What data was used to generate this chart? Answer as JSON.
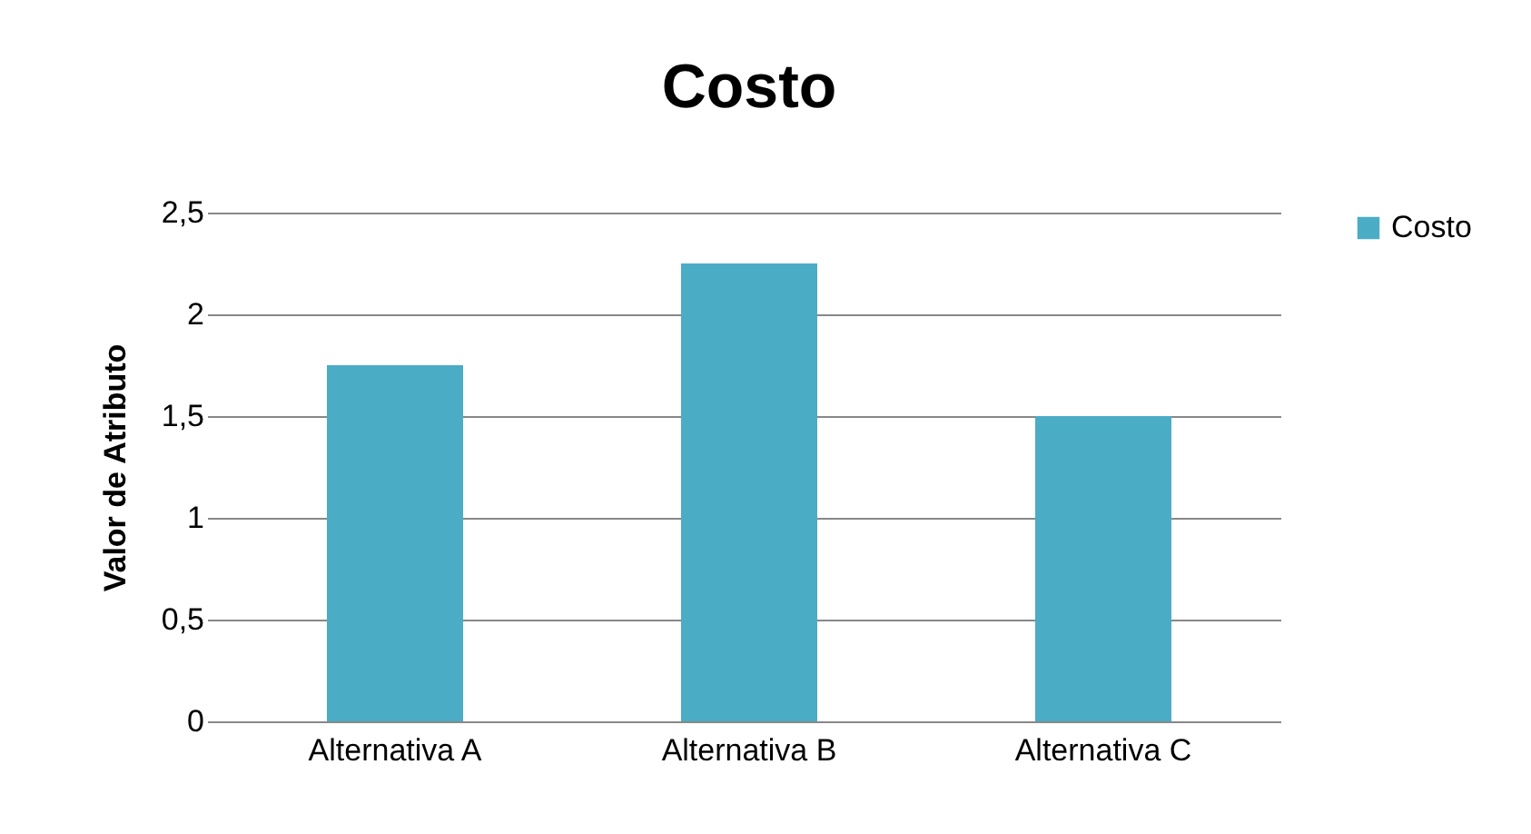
{
  "chart_data": {
    "type": "bar",
    "title": "Costo",
    "ylabel": "Valor de Atributo",
    "categories": [
      "Alternativa A",
      "Alternativa B",
      "Alternativa C"
    ],
    "series": [
      {
        "name": "Costo",
        "color": "#4bacc6",
        "values": [
          1.75,
          2.25,
          1.5
        ]
      }
    ],
    "ylim": [
      0,
      2.5
    ],
    "yticks": [
      0,
      {
        "value": 0.5,
        "label": "0,5"
      },
      1,
      {
        "value": 1.5,
        "label": "1,5"
      },
      2,
      {
        "value": 2.5,
        "label": "2,5"
      }
    ],
    "grid": "y",
    "legend": "right"
  }
}
